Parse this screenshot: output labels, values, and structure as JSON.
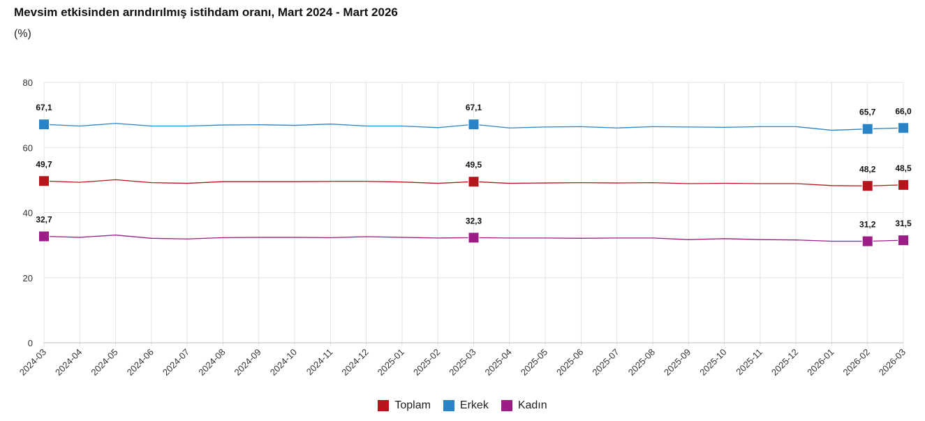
{
  "title": "Mevsim etkisinden arındırılmış istihdam oranı, Mart 2024 - Mart 2026",
  "subtitle": "(%)",
  "chart_data": {
    "type": "line",
    "title": "Mevsim etkisinden arındırılmış istihdam oranı, Mart 2024 - Mart 2026",
    "ylabel": "(%)",
    "ylim": [
      0,
      80
    ],
    "yticks": [
      0,
      20,
      40,
      60,
      80
    ],
    "grid": true,
    "legend": "bottom",
    "x": [
      "2024-03",
      "2024-04",
      "2024-05",
      "2024-06",
      "2024-07",
      "2024-08",
      "2024-09",
      "2024-10",
      "2024-11",
      "2024-12",
      "2025-01",
      "2025-02",
      "2025-03",
      "2025-04",
      "2025-05",
      "2025-06",
      "2025-07",
      "2025-08",
      "2025-09",
      "2025-10",
      "2025-11",
      "2025-12",
      "2026-01",
      "2026-02",
      "2026-03"
    ],
    "labeled_points": [
      0,
      12,
      23,
      24
    ],
    "series": [
      {
        "name": "Toplam",
        "color": "#b3171c",
        "values": [
          49.7,
          49.3,
          50.1,
          49.2,
          49.0,
          49.5,
          49.5,
          49.5,
          49.6,
          49.6,
          49.4,
          49.0,
          49.5,
          49.0,
          49.1,
          49.2,
          49.1,
          49.2,
          48.9,
          49.0,
          48.9,
          48.9,
          48.3,
          48.2,
          48.5
        ],
        "labels": [
          "49,7",
          "49,5",
          "48,2",
          "48,5"
        ]
      },
      {
        "name": "Erkek",
        "color": "#2a83c6",
        "values": [
          67.1,
          66.6,
          67.4,
          66.6,
          66.6,
          66.9,
          67.0,
          66.8,
          67.2,
          66.6,
          66.6,
          66.1,
          67.1,
          66.0,
          66.3,
          66.4,
          66.0,
          66.4,
          66.3,
          66.2,
          66.4,
          66.4,
          65.3,
          65.7,
          66.0
        ],
        "labels": [
          "67,1",
          "67,1",
          "65,7",
          "66,0"
        ]
      },
      {
        "name": "Kadın",
        "color": "#9b1d85",
        "values": [
          32.7,
          32.4,
          33.1,
          32.1,
          31.9,
          32.3,
          32.4,
          32.4,
          32.3,
          32.6,
          32.4,
          32.2,
          32.3,
          32.2,
          32.2,
          32.1,
          32.2,
          32.2,
          31.7,
          32.0,
          31.7,
          31.6,
          31.2,
          31.2,
          31.5
        ],
        "labels": [
          "32,7",
          "32,3",
          "31,2",
          "31,5"
        ]
      }
    ]
  }
}
